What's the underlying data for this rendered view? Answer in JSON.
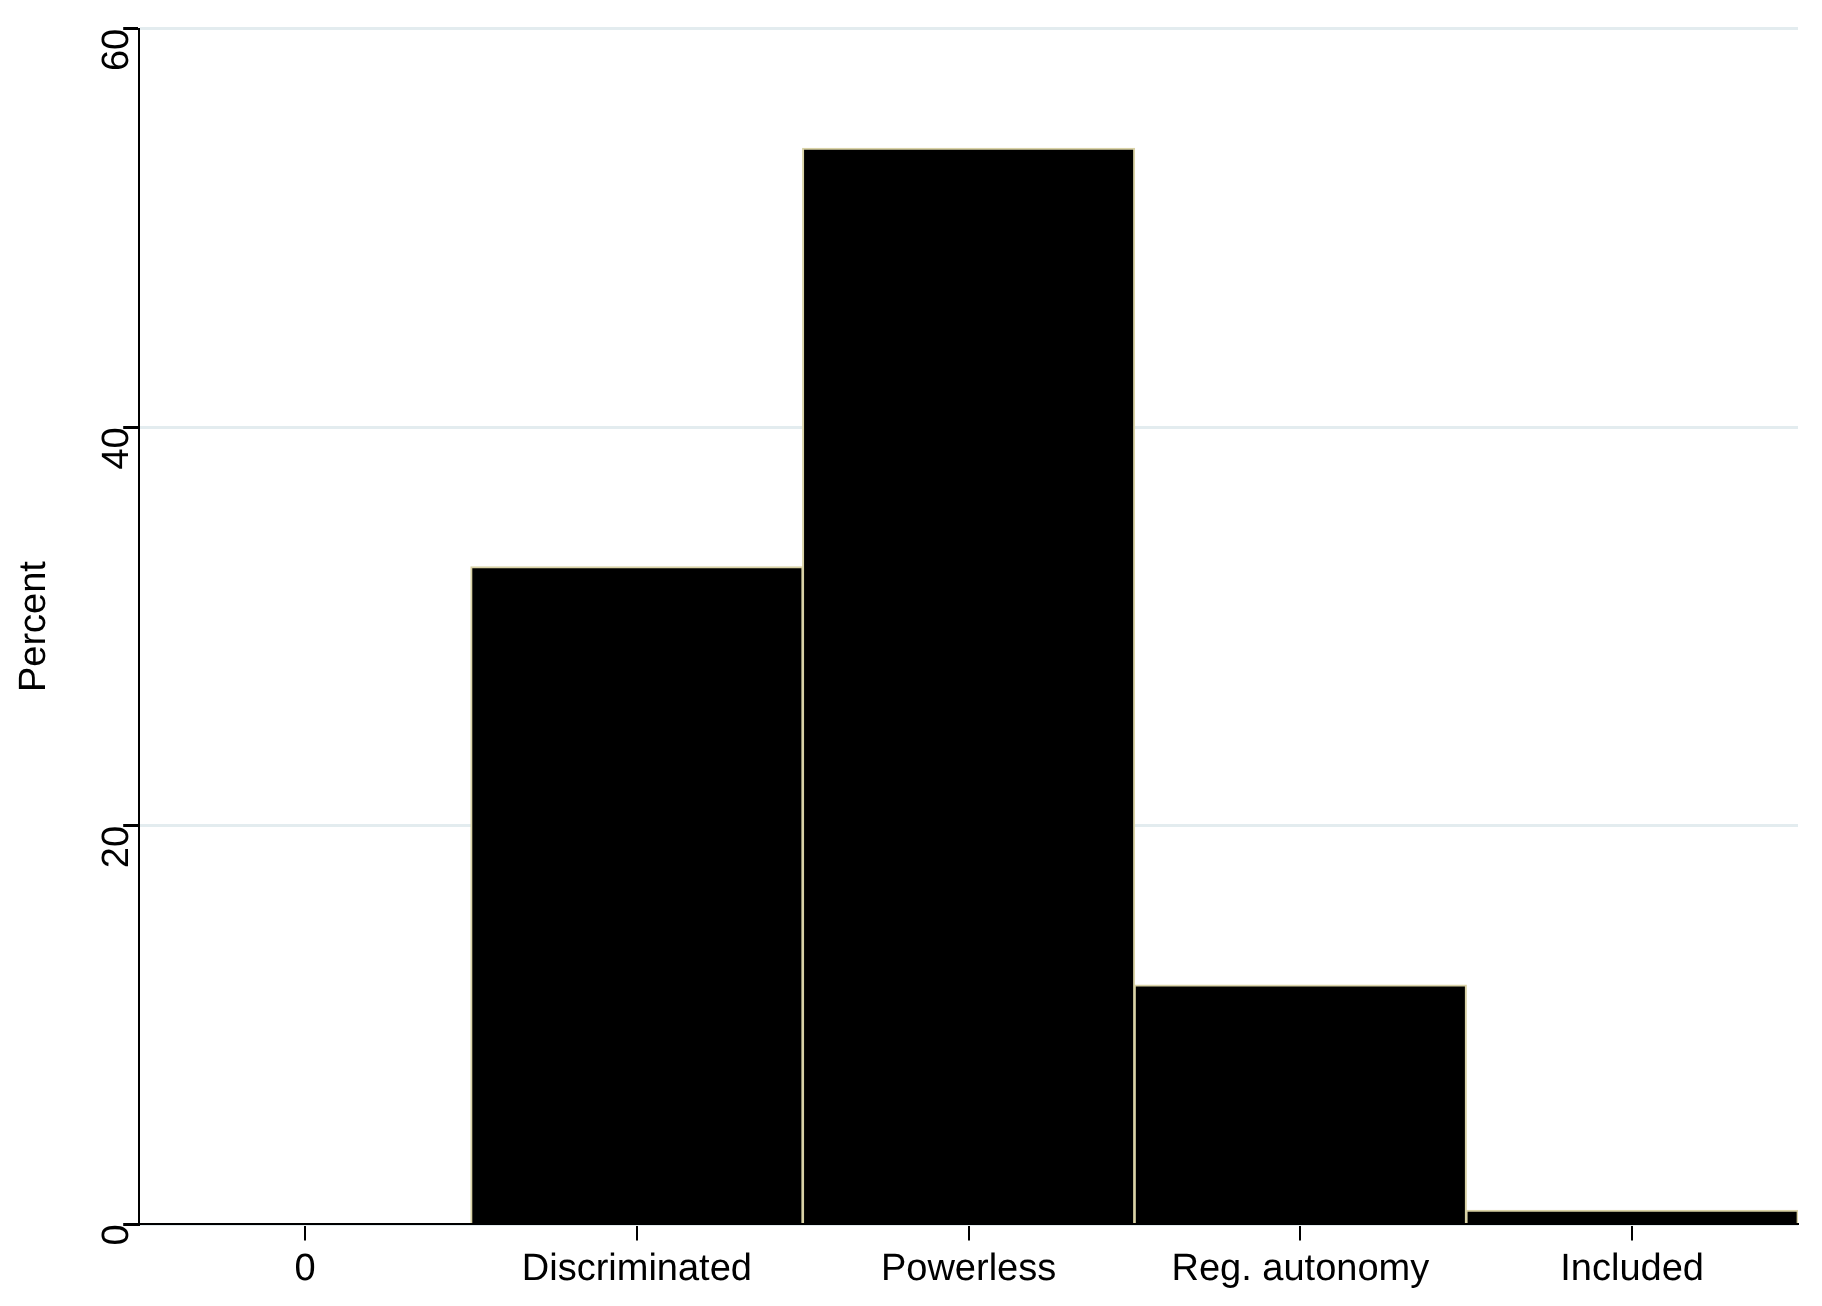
{
  "chart_data": {
    "type": "bar",
    "ylabel": "Percent",
    "categories": [
      "0",
      "Discriminated",
      "Powerless",
      "Reg. autonomy",
      "Included"
    ],
    "values": [
      null,
      33,
      54,
      12,
      0.7
    ],
    "color": "#000000",
    "ylim": [
      0,
      60
    ],
    "yticks": [
      0,
      20,
      40,
      60
    ],
    "grid": "y",
    "legend": false
  }
}
